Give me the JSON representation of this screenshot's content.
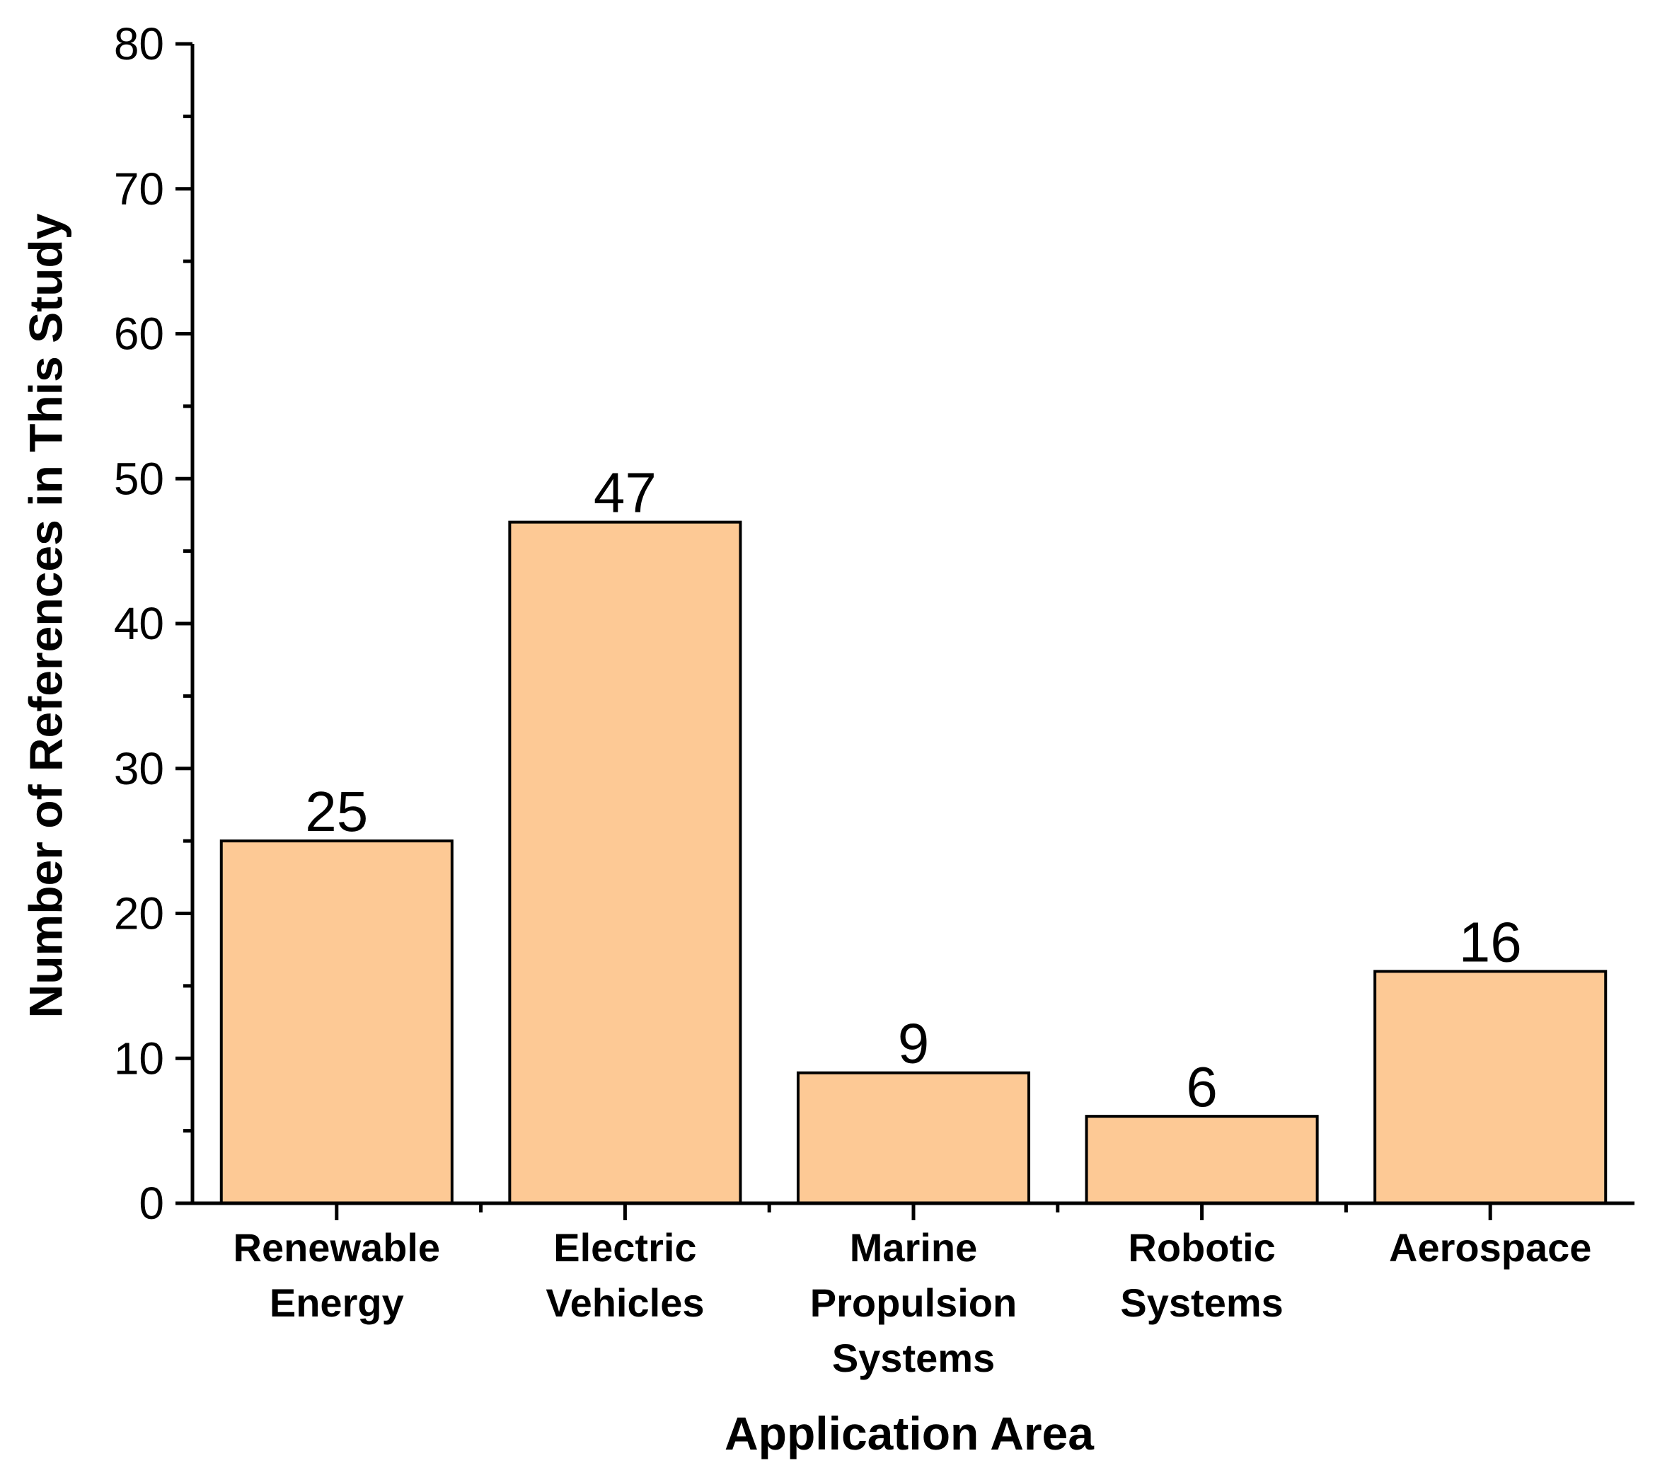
{
  "chart_data": {
    "type": "bar",
    "title": "",
    "xlabel": "Application Area",
    "ylabel": "Number of References in This Study",
    "categories": [
      [
        "Renewable",
        "Energy"
      ],
      [
        "Electric",
        "Vehicles"
      ],
      [
        "Marine",
        "Propulsion",
        "Systems"
      ],
      [
        "Robotic",
        "Systems"
      ],
      [
        "Aerospace"
      ]
    ],
    "values": [
      25,
      47,
      9,
      6,
      16
    ],
    "data_labels": [
      "25",
      "47",
      "9",
      "6",
      "16"
    ],
    "ylim": [
      0,
      80
    ],
    "y_ticks": [
      "0",
      "10",
      "20",
      "30",
      "40",
      "50",
      "60",
      "70",
      "80"
    ],
    "y_minor_step": 5,
    "grid": false,
    "legend": "none",
    "colors": {
      "bar_fill": "#FDC995",
      "bar_stroke": "#000000",
      "axis": "#000000"
    }
  }
}
